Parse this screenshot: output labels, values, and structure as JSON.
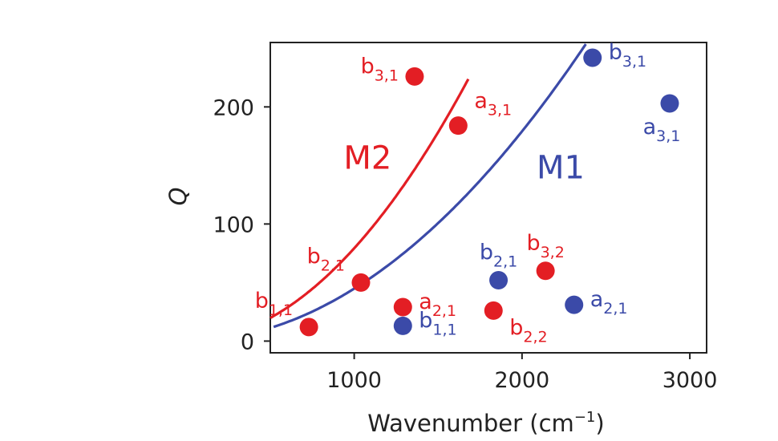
{
  "chart_data": {
    "type": "scatter",
    "xlabel": "Wavenumber (cm",
    "xlabel_sup": "−1",
    "xlabel_end": ")",
    "ylabel": "Q",
    "xlim": [
      500,
      3100
    ],
    "ylim": [
      -10,
      255
    ],
    "xticks": [
      1000,
      2000,
      3000
    ],
    "yticks": [
      0,
      100,
      200
    ],
    "grid": false,
    "colors": {
      "M2": "#e31e24",
      "M1": "#3b4aa8"
    },
    "curves": [
      {
        "name": "M2",
        "label_x": 1080,
        "label_y": 147,
        "x_start": 500,
        "x_end": 1680,
        "coef": 7.928e-05,
        "power": 2
      },
      {
        "name": "M1",
        "label_x": 2230,
        "label_y": 139,
        "x_start": 520,
        "x_end": 2380,
        "coef": 4.478e-05,
        "power": 2
      }
    ],
    "series": [
      {
        "name": "M2",
        "points": [
          {
            "x": 730,
            "y": 12,
            "label": "b",
            "sub": "1,1",
            "pos": "above-left"
          },
          {
            "x": 1040,
            "y": 50,
            "label": "b",
            "sub": "2,1",
            "pos": "above-left"
          },
          {
            "x": 1290,
            "y": 29,
            "label": "a",
            "sub": "2,1",
            "pos": "right"
          },
          {
            "x": 1360,
            "y": 226,
            "label": "b",
            "sub": "3,1",
            "pos": "left"
          },
          {
            "x": 1620,
            "y": 184,
            "label": "a",
            "sub": "3,1",
            "pos": "above-right"
          },
          {
            "x": 1830,
            "y": 26,
            "label": "b",
            "sub": "2,2",
            "pos": "below-right"
          },
          {
            "x": 2140,
            "y": 60,
            "label": "b",
            "sub": "3,2",
            "pos": "above"
          }
        ]
      },
      {
        "name": "M1",
        "points": [
          {
            "x": 1290,
            "y": 13,
            "label": "b",
            "sub": "1,1",
            "pos": "right"
          },
          {
            "x": 1860,
            "y": 52,
            "label": "b",
            "sub": "2,1",
            "pos": "above"
          },
          {
            "x": 2310,
            "y": 31,
            "label": "a",
            "sub": "2,1",
            "pos": "right"
          },
          {
            "x": 2420,
            "y": 242,
            "label": "b",
            "sub": "3,1",
            "pos": "right"
          },
          {
            "x": 2880,
            "y": 203,
            "label": "a",
            "sub": "3,1",
            "pos": "below"
          }
        ]
      }
    ]
  }
}
